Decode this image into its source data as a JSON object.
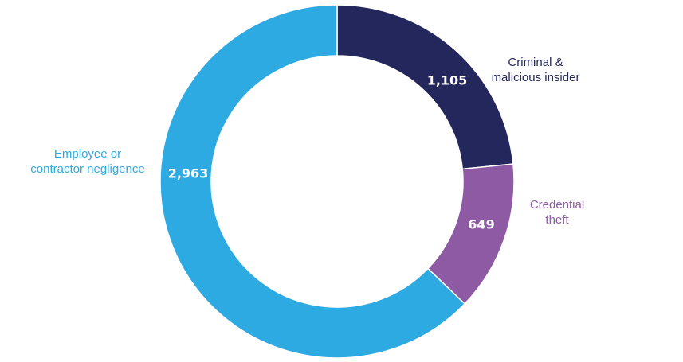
{
  "chart_data": {
    "type": "pie",
    "style": "donut",
    "title": "",
    "slices": [
      {
        "label": [
          "Criminal &",
          "malicious insider"
        ],
        "value": 1105,
        "display": "1,105",
        "color": "#23275c"
      },
      {
        "label": [
          "Credential",
          "theft"
        ],
        "value": 649,
        "display": "649",
        "color": "#8e5aa4"
      },
      {
        "label": [
          "Employee or",
          "contractor negligence"
        ],
        "value": 2963,
        "display": "2,963",
        "color": "#2eaae2"
      }
    ]
  }
}
